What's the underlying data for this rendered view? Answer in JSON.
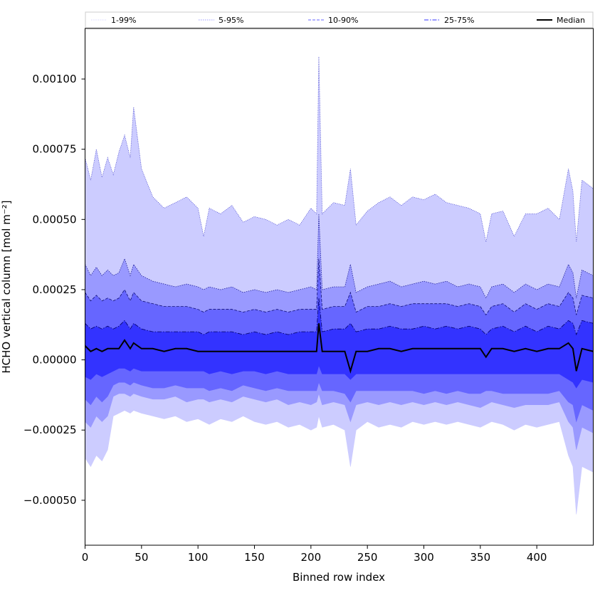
{
  "chart_data": {
    "type": "area",
    "title": "",
    "xlabel": "Binned row index",
    "ylabel": "HCHO vertical column [mol m⁻²]",
    "xlim": [
      0,
      450
    ],
    "ylim": [
      -0.00066,
      0.00118
    ],
    "x_ticks": [
      0,
      50,
      100,
      150,
      200,
      250,
      300,
      350,
      400
    ],
    "x_tick_labels": [
      "0",
      "50",
      "100",
      "150",
      "200",
      "250",
      "300",
      "350",
      "400"
    ],
    "y_ticks": [
      -0.0005,
      -0.00025,
      0.0,
      0.00025,
      0.0005,
      0.00075,
      0.001
    ],
    "y_tick_labels": [
      "−0.00050",
      "−0.00025",
      "0.00000",
      "0.00025",
      "0.00050",
      "0.00075",
      "0.00100"
    ],
    "grid": false,
    "legend_placement": "top, above plot (single row)",
    "legend": [
      {
        "label": "1-99%",
        "color": "#ccccff",
        "style": "dotted-thin"
      },
      {
        "label": "5-95%",
        "color": "#9999ff",
        "style": "dotted"
      },
      {
        "label": "10-90%",
        "color": "#6666ff",
        "style": "dashed"
      },
      {
        "label": "25-75%",
        "color": "#3333ff",
        "style": "dash-dot"
      },
      {
        "label": "Median",
        "color": "#000000",
        "style": "solid"
      }
    ],
    "x": [
      0,
      5,
      10,
      15,
      20,
      25,
      30,
      35,
      40,
      43,
      50,
      60,
      70,
      80,
      90,
      100,
      105,
      110,
      120,
      130,
      140,
      150,
      160,
      170,
      180,
      190,
      200,
      205,
      207,
      210,
      220,
      230,
      235,
      240,
      250,
      260,
      270,
      280,
      290,
      300,
      310,
      320,
      330,
      340,
      350,
      355,
      360,
      370,
      380,
      390,
      400,
      410,
      420,
      428,
      432,
      435,
      440,
      450
    ],
    "series": [
      {
        "name": "1-99%",
        "color": "#ccccff",
        "line_color": "#4444cc",
        "upper": [
          0.00072,
          0.00064,
          0.00075,
          0.00065,
          0.00072,
          0.00066,
          0.00074,
          0.0008,
          0.00072,
          0.0009,
          0.00068,
          0.00058,
          0.00054,
          0.00056,
          0.00058,
          0.00054,
          0.00044,
          0.00054,
          0.00052,
          0.00055,
          0.00049,
          0.00051,
          0.0005,
          0.00048,
          0.0005,
          0.00048,
          0.00054,
          0.00052,
          0.00108,
          0.00052,
          0.00056,
          0.00055,
          0.00068,
          0.00048,
          0.00053,
          0.00056,
          0.00058,
          0.00055,
          0.00058,
          0.00057,
          0.00059,
          0.00056,
          0.00055,
          0.00054,
          0.00052,
          0.00042,
          0.00052,
          0.00053,
          0.00044,
          0.00052,
          0.00052,
          0.00054,
          0.0005,
          0.00068,
          0.0006,
          0.00042,
          0.00064,
          0.00061
        ],
        "lower": [
          -0.00035,
          -0.00038,
          -0.00034,
          -0.00036,
          -0.00032,
          -0.0002,
          -0.00019,
          -0.00018,
          -0.00019,
          -0.00018,
          -0.00019,
          -0.0002,
          -0.00021,
          -0.0002,
          -0.00022,
          -0.00021,
          -0.00022,
          -0.00023,
          -0.00021,
          -0.00022,
          -0.0002,
          -0.00022,
          -0.00023,
          -0.00022,
          -0.00024,
          -0.00023,
          -0.00025,
          -0.00024,
          -0.0002,
          -0.00024,
          -0.00023,
          -0.00025,
          -0.00038,
          -0.00025,
          -0.00022,
          -0.00024,
          -0.00023,
          -0.00024,
          -0.00022,
          -0.00023,
          -0.00022,
          -0.00023,
          -0.00022,
          -0.00023,
          -0.00024,
          -0.00023,
          -0.00022,
          -0.00023,
          -0.00025,
          -0.00023,
          -0.00024,
          -0.00023,
          -0.00022,
          -0.00034,
          -0.00038,
          -0.00055,
          -0.00038,
          -0.0004
        ]
      },
      {
        "name": "5-95%",
        "color": "#9999ff",
        "line_color": "#222299",
        "upper": [
          0.00034,
          0.0003,
          0.00033,
          0.0003,
          0.00032,
          0.0003,
          0.00031,
          0.00036,
          0.0003,
          0.00034,
          0.0003,
          0.00028,
          0.00027,
          0.00026,
          0.00027,
          0.00026,
          0.00025,
          0.00026,
          0.00025,
          0.00026,
          0.00024,
          0.00025,
          0.00024,
          0.00025,
          0.00024,
          0.00025,
          0.00026,
          0.00025,
          0.00052,
          0.00025,
          0.00026,
          0.00026,
          0.00034,
          0.00024,
          0.00026,
          0.00027,
          0.00028,
          0.00026,
          0.00027,
          0.00028,
          0.00027,
          0.00028,
          0.00026,
          0.00027,
          0.00026,
          0.00022,
          0.00026,
          0.00027,
          0.00024,
          0.00027,
          0.00025,
          0.00027,
          0.00026,
          0.00034,
          0.00031,
          0.00022,
          0.00032,
          0.0003
        ],
        "lower": [
          -0.00022,
          -0.00024,
          -0.0002,
          -0.00022,
          -0.0002,
          -0.00013,
          -0.00012,
          -0.00012,
          -0.00013,
          -0.00012,
          -0.00013,
          -0.00014,
          -0.00014,
          -0.00013,
          -0.00015,
          -0.00014,
          -0.00014,
          -0.00015,
          -0.00014,
          -0.00015,
          -0.00013,
          -0.00014,
          -0.00015,
          -0.00014,
          -0.00016,
          -0.00015,
          -0.00016,
          -0.00015,
          -0.00012,
          -0.00016,
          -0.00015,
          -0.00016,
          -0.00022,
          -0.00016,
          -0.00015,
          -0.00016,
          -0.00015,
          -0.00016,
          -0.00015,
          -0.00016,
          -0.00015,
          -0.00016,
          -0.00015,
          -0.00016,
          -0.00017,
          -0.00016,
          -0.00015,
          -0.00016,
          -0.00017,
          -0.00016,
          -0.00016,
          -0.00016,
          -0.00015,
          -0.00022,
          -0.00024,
          -0.00032,
          -0.00024,
          -0.00026
        ]
      },
      {
        "name": "10-90%",
        "color": "#6666ff",
        "line_color": "#111177",
        "upper": [
          0.00024,
          0.00021,
          0.00023,
          0.00021,
          0.00022,
          0.00021,
          0.00022,
          0.00025,
          0.00021,
          0.00024,
          0.00021,
          0.0002,
          0.00019,
          0.00019,
          0.00019,
          0.00018,
          0.00017,
          0.00018,
          0.00018,
          0.00018,
          0.00017,
          0.00018,
          0.00017,
          0.00018,
          0.00017,
          0.00018,
          0.00018,
          0.00018,
          0.00036,
          0.00018,
          0.00019,
          0.00019,
          0.00024,
          0.00017,
          0.00019,
          0.00019,
          0.0002,
          0.00019,
          0.0002,
          0.0002,
          0.0002,
          0.0002,
          0.00019,
          0.0002,
          0.00019,
          0.00016,
          0.00019,
          0.0002,
          0.00017,
          0.0002,
          0.00018,
          0.0002,
          0.00019,
          0.00024,
          0.00022,
          0.00016,
          0.00023,
          0.00022
        ],
        "lower": [
          -0.00014,
          -0.00016,
          -0.00013,
          -0.00015,
          -0.00013,
          -9e-05,
          -8e-05,
          -8e-05,
          -9e-05,
          -8e-05,
          -9e-05,
          -0.0001,
          -0.0001,
          -9e-05,
          -0.0001,
          -0.0001,
          -0.0001,
          -0.00011,
          -0.0001,
          -0.00011,
          -9e-05,
          -0.0001,
          -0.00011,
          -0.0001,
          -0.00011,
          -0.00011,
          -0.00011,
          -0.00011,
          -8e-05,
          -0.00011,
          -0.00011,
          -0.00012,
          -0.00015,
          -0.00011,
          -0.00011,
          -0.00011,
          -0.00011,
          -0.00011,
          -0.00011,
          -0.00012,
          -0.00011,
          -0.00012,
          -0.00011,
          -0.00012,
          -0.00012,
          -0.00011,
          -0.00011,
          -0.00012,
          -0.00012,
          -0.00012,
          -0.00012,
          -0.00012,
          -0.00011,
          -0.00015,
          -0.00016,
          -0.00022,
          -0.00016,
          -0.00018
        ]
      },
      {
        "name": "25-75%",
        "color": "#3333ff",
        "line_color": "#000066",
        "upper": [
          0.00013,
          0.00011,
          0.00012,
          0.00011,
          0.00012,
          0.00011,
          0.00012,
          0.00014,
          0.00011,
          0.00013,
          0.00011,
          0.0001,
          0.0001,
          0.0001,
          0.0001,
          0.0001,
          9e-05,
          0.0001,
          0.0001,
          0.0001,
          9e-05,
          0.0001,
          9e-05,
          0.0001,
          9e-05,
          0.0001,
          0.0001,
          0.0001,
          0.00022,
          0.0001,
          0.00011,
          0.00011,
          0.00013,
          0.0001,
          0.00011,
          0.00011,
          0.00012,
          0.00011,
          0.00011,
          0.00012,
          0.00011,
          0.00012,
          0.00011,
          0.00012,
          0.00011,
          9e-05,
          0.00011,
          0.00012,
          0.0001,
          0.00012,
          0.0001,
          0.00012,
          0.00011,
          0.00014,
          0.00013,
          9e-05,
          0.00014,
          0.00013
        ],
        "lower": [
          -6e-05,
          -7e-05,
          -5e-05,
          -6e-05,
          -5e-05,
          -4e-05,
          -3e-05,
          -3e-05,
          -4e-05,
          -3e-05,
          -4e-05,
          -4e-05,
          -4e-05,
          -4e-05,
          -4e-05,
          -4e-05,
          -4e-05,
          -5e-05,
          -4e-05,
          -5e-05,
          -4e-05,
          -4e-05,
          -5e-05,
          -4e-05,
          -5e-05,
          -5e-05,
          -5e-05,
          -5e-05,
          -2e-05,
          -5e-05,
          -5e-05,
          -5e-05,
          -7e-05,
          -5e-05,
          -5e-05,
          -5e-05,
          -5e-05,
          -5e-05,
          -5e-05,
          -5e-05,
          -5e-05,
          -5e-05,
          -5e-05,
          -5e-05,
          -5e-05,
          -5e-05,
          -5e-05,
          -5e-05,
          -5e-05,
          -5e-05,
          -5e-05,
          -5e-05,
          -5e-05,
          -7e-05,
          -8e-05,
          -0.0001,
          -7e-05,
          -8e-05
        ]
      },
      {
        "name": "Median",
        "color": "#000000",
        "values": [
          5e-05,
          3e-05,
          4e-05,
          3e-05,
          4e-05,
          4e-05,
          4e-05,
          7e-05,
          4e-05,
          6e-05,
          4e-05,
          4e-05,
          3e-05,
          4e-05,
          4e-05,
          3e-05,
          3e-05,
          3e-05,
          3e-05,
          3e-05,
          3e-05,
          3e-05,
          3e-05,
          3e-05,
          3e-05,
          3e-05,
          3e-05,
          3e-05,
          0.00013,
          3e-05,
          3e-05,
          3e-05,
          -4e-05,
          3e-05,
          3e-05,
          4e-05,
          4e-05,
          3e-05,
          4e-05,
          4e-05,
          4e-05,
          4e-05,
          4e-05,
          4e-05,
          4e-05,
          1e-05,
          4e-05,
          4e-05,
          3e-05,
          4e-05,
          3e-05,
          4e-05,
          4e-05,
          6e-05,
          4e-05,
          -4e-05,
          4e-05,
          3e-05
        ]
      }
    ]
  }
}
